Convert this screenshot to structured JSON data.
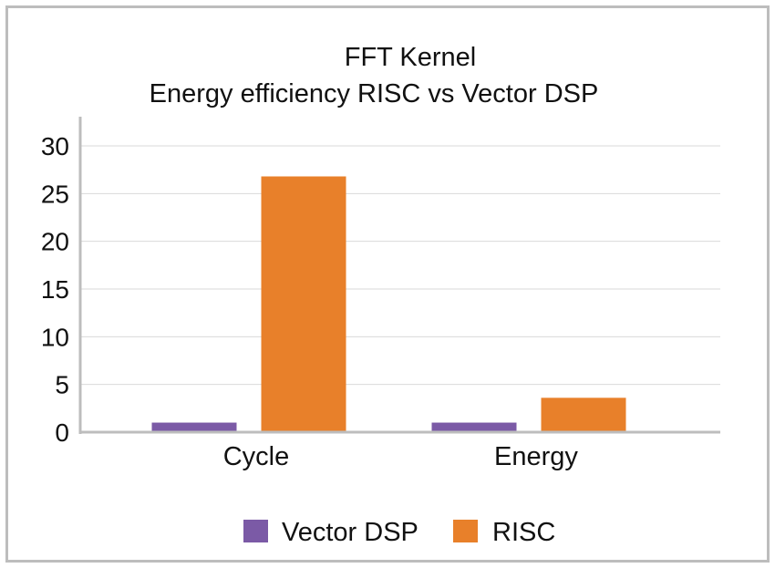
{
  "chart_data": {
    "type": "bar",
    "title": "FFT Kernel",
    "subtitle": "Energy efficiency RISC vs Vector DSP",
    "categories": [
      "Cycle",
      "Energy"
    ],
    "series": [
      {
        "name": "Vector DSP",
        "color": "#7b5aa6",
        "values": [
          1,
          1
        ]
      },
      {
        "name": "RISC",
        "color": "#e8802a",
        "values": [
          26.8,
          3.6
        ]
      }
    ],
    "ylim": [
      0,
      30
    ],
    "yticks": [
      0,
      5,
      10,
      15,
      20,
      25,
      30
    ],
    "grid": true,
    "legend": "bottom"
  }
}
